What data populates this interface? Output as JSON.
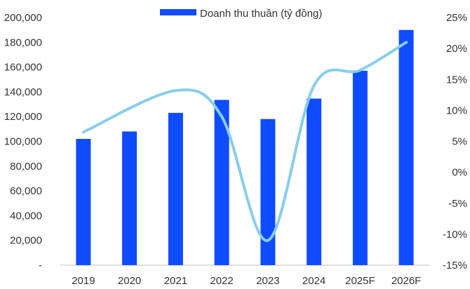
{
  "chart_data": {
    "type": "bar",
    "title": "",
    "xlabel": "",
    "categories": [
      "2019",
      "2020",
      "2021",
      "2022",
      "2023",
      "2024",
      "2025F",
      "2026F"
    ],
    "series": [
      {
        "name": "Doanh thu thuần (tỷ đồng)",
        "type": "bar",
        "axis": "left",
        "color": "#0f4bff",
        "values": [
          102000,
          108000,
          123000,
          133500,
          118000,
          134500,
          157000,
          190000
        ]
      },
      {
        "type": "line",
        "axis": "right",
        "color": "#87ceeb",
        "smooth": true,
        "values": [
          6.5,
          null,
          13.2,
          9.0,
          -11.0,
          14.0,
          16.5,
          21.0
        ]
      }
    ],
    "y_left": {
      "ylim": [
        0,
        200000
      ],
      "tick_values": [
        0,
        20000,
        40000,
        60000,
        80000,
        100000,
        120000,
        140000,
        160000,
        180000,
        200000
      ],
      "tick_labels": [
        "-",
        "20,000",
        "40,000",
        "60,000",
        "80,000",
        "100,000",
        "120,000",
        "140,000",
        "160,000",
        "180,000",
        "200,000"
      ]
    },
    "y_right": {
      "ylim": [
        -15,
        25
      ],
      "tick_values": [
        -15,
        -10,
        -5,
        0,
        5,
        10,
        15,
        20,
        25
      ],
      "tick_labels": [
        "-15%",
        "-10%",
        "-5%",
        "0%",
        "5%",
        "10%",
        "15%",
        "20%",
        "25%"
      ]
    },
    "grid": false,
    "legend": {
      "position": "top",
      "entries": [
        "Doanh thu thuần (tỷ đồng)"
      ]
    }
  }
}
